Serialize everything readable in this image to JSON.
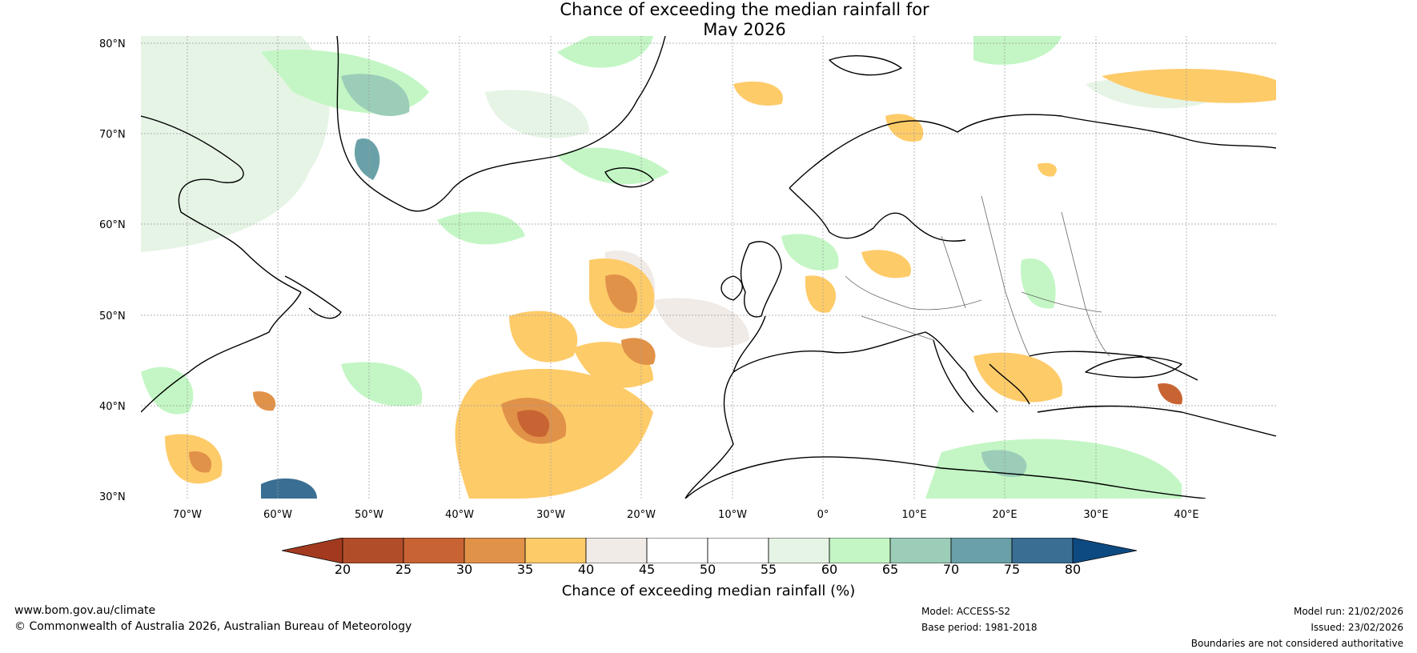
{
  "map": {
    "title_line1": "Chance of exceeding the median rainfall for",
    "title_line2": "May 2026",
    "lat_labels": [
      "80°N",
      "70°N",
      "60°N",
      "50°N",
      "40°N",
      "30°N"
    ],
    "lon_labels": [
      "70°W",
      "60°W",
      "50°W",
      "40°W",
      "30°W",
      "20°W",
      "10°W",
      "0°",
      "10°E",
      "20°E",
      "30°E",
      "40°E"
    ]
  },
  "colorbar": {
    "ticks": [
      "20",
      "25",
      "30",
      "35",
      "40",
      "45",
      "50",
      "55",
      "60",
      "65",
      "70",
      "75",
      "80"
    ],
    "colors": [
      "#a33a1f",
      "#b24d2a",
      "#c86433",
      "#e19249",
      "#fecb69",
      "#f0ebe7",
      "#ffffff",
      "#ffffff",
      "#e6f4e6",
      "#c3f6c4",
      "#9bcdb8",
      "#6aa1a8",
      "#3a6f93",
      "#0d4a81"
    ],
    "label": "Chance of exceeding median rainfall (%)"
  },
  "footer": {
    "website": "www.bom.gov.au/climate",
    "copyright": "© Commonwealth of Australia 2026, Australian Bureau of Meteorology",
    "model": "Model: ACCESS-S2",
    "base_period": "Base period: 1981-2018",
    "model_run": "Model run: 21/02/2026",
    "issued": "Issued: 23/02/2026",
    "disclaimer": "Boundaries are not considered authoritative"
  }
}
